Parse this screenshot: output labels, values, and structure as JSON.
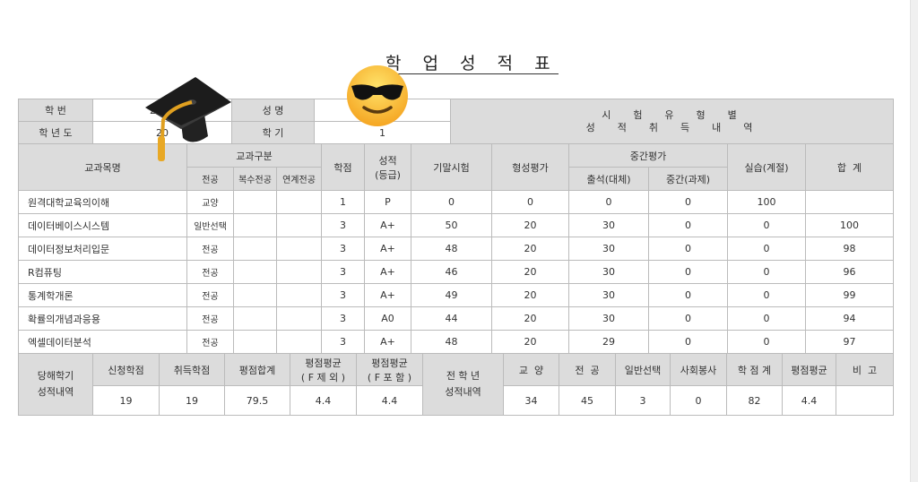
{
  "title": "학 업 성 적 표",
  "info": {
    "student_id_label": "학  번",
    "student_id": "2025",
    "name_label": "성  명",
    "name": "",
    "year_label": "학 년 도",
    "year": "20",
    "semester_label": "학  기",
    "semester": "1",
    "exam_header_1": "시  험  유  형  별",
    "exam_header_2": "성  적  취  득  내  역"
  },
  "headers": {
    "course": "교과목명",
    "category": "교과구분",
    "major": "전공",
    "double_major": "복수전공",
    "linked_major": "연계전공",
    "credits": "학점",
    "grade": "성적\n(등급)",
    "final": "기말시험",
    "formative": "형성평가",
    "midterm": "중간평가",
    "attendance": "출석(대체)",
    "mid_task": "중간(과제)",
    "practice": "실습(계절)",
    "total": "합  계"
  },
  "rows": [
    {
      "course": "원격대학교육의이해",
      "cat": "교양",
      "credits": "1",
      "grade": "P",
      "final": "0",
      "formative": "0",
      "attendance": "0",
      "mid": "0",
      "practice": "100",
      "total": ""
    },
    {
      "course": "데이터베이스시스템",
      "cat": "일반선택",
      "credits": "3",
      "grade": "A+",
      "final": "50",
      "formative": "20",
      "attendance": "30",
      "mid": "0",
      "practice": "0",
      "total": "100"
    },
    {
      "course": "데이터정보처리입문",
      "cat": "전공",
      "credits": "3",
      "grade": "A+",
      "final": "48",
      "formative": "20",
      "attendance": "30",
      "mid": "0",
      "practice": "0",
      "total": "98"
    },
    {
      "course": "R컴퓨팅",
      "cat": "전공",
      "credits": "3",
      "grade": "A+",
      "final": "46",
      "formative": "20",
      "attendance": "30",
      "mid": "0",
      "practice": "0",
      "total": "96"
    },
    {
      "course": "통계학개론",
      "cat": "전공",
      "credits": "3",
      "grade": "A+",
      "final": "49",
      "formative": "20",
      "attendance": "30",
      "mid": "0",
      "practice": "0",
      "total": "99"
    },
    {
      "course": "확률의개념과응용",
      "cat": "전공",
      "credits": "3",
      "grade": "A0",
      "final": "44",
      "formative": "20",
      "attendance": "30",
      "mid": "0",
      "practice": "0",
      "total": "94"
    },
    {
      "course": "엑셀데이터분석",
      "cat": "전공",
      "credits": "3",
      "grade": "A+",
      "final": "48",
      "formative": "20",
      "attendance": "29",
      "mid": "0",
      "practice": "0",
      "total": "97"
    }
  ],
  "summary": {
    "semester_label": "당해학기\n성적내역",
    "applied_label": "신청학점",
    "earned_label": "취득학점",
    "gp_sum_label": "평점합계",
    "gpa_excl_label": "평점평균\n( F 제 외 )",
    "gpa_incl_label": "평점평균\n( F 포 함 )",
    "applied": "19",
    "earned": "19",
    "gp_sum": "79.5",
    "gpa_excl": "4.4",
    "gpa_incl": "4.4",
    "all_label": "전 학 년\n성적내역",
    "liberal_label": "교  양",
    "major_label": "전  공",
    "elective_label": "일반선택",
    "service_label": "사회봉사",
    "total_credits_label": "학 점 계",
    "gpa_label": "평점평균",
    "remarks_label": "비  고",
    "liberal": "34",
    "major": "45",
    "elective": "3",
    "service": "0",
    "total_credits": "82",
    "gpa": "4.4",
    "remarks": ""
  },
  "icons": [
    "graduation-cap-icon",
    "sunglasses-smiley-icon"
  ]
}
